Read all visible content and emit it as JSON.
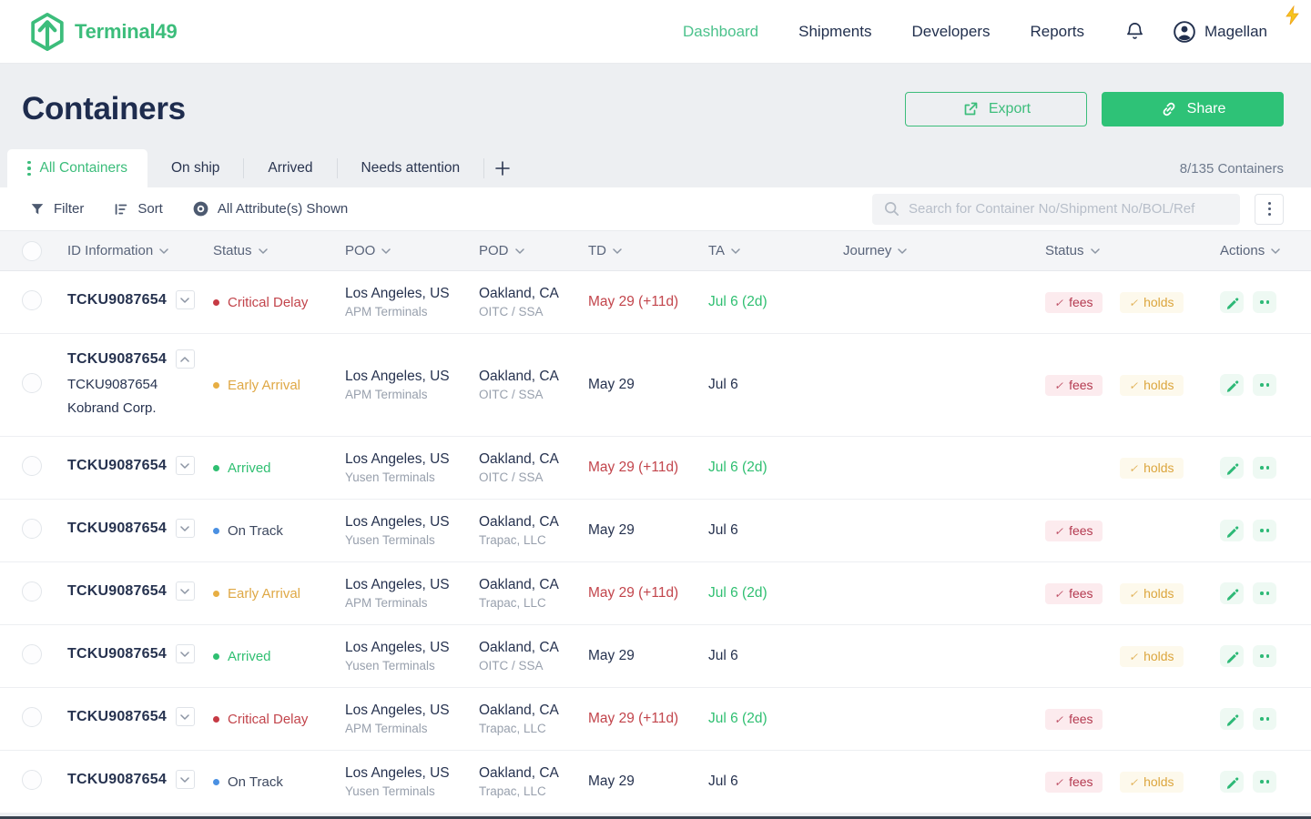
{
  "theme": {
    "brand_green": "#3cbd7b",
    "share_green": "#2ec277",
    "navy": "#22304e",
    "red": "#c2444b",
    "amber": "#e0ab49",
    "status_green": "#2fbf71",
    "blue": "#4a90e2"
  },
  "header": {
    "brand": "Terminal49",
    "nav": [
      {
        "label": "Dashboard",
        "active": true
      },
      {
        "label": "Shipments",
        "active": false
      },
      {
        "label": "Developers",
        "active": false
      },
      {
        "label": "Reports",
        "active": false
      }
    ],
    "user": "Magellan"
  },
  "page": {
    "title": "Containers",
    "export_label": "Export",
    "share_label": "Share",
    "count": "8/135 Containers"
  },
  "tabs": [
    {
      "label": "All Containers",
      "active": true
    },
    {
      "label": "On ship",
      "active": false
    },
    {
      "label": "Arrived",
      "active": false
    },
    {
      "label": "Needs attention",
      "active": false
    }
  ],
  "toolbar": {
    "filter_label": "Filter",
    "sort_label": "Sort",
    "attributes_label": "All Attribute(s) Shown",
    "search_placeholder": "Search for Container No/Shipment No/BOL/Ref"
  },
  "table": {
    "columns": [
      "ID Information",
      "Status",
      "POO",
      "POD",
      "TD",
      "TA",
      "Journey",
      "Status",
      "Actions"
    ],
    "badge_labels": {
      "fees": "fees",
      "holds": "holds"
    },
    "rows": [
      {
        "id": "TCKU9087654",
        "expanded": false,
        "sub_lines": [],
        "status": {
          "label": "Critical Delay",
          "type": "critical"
        },
        "poo": {
          "city": "Los Angeles, US",
          "terminal": "APM Terminals"
        },
        "pod": {
          "city": "Oakland, CA",
          "terminal": "OITC / SSA"
        },
        "td": {
          "text": "May 29 (+11d)",
          "delayed": true
        },
        "ta": {
          "text": "Jul 6 (2d)",
          "early": true
        },
        "badges": {
          "fees": true,
          "holds": true
        }
      },
      {
        "id": "TCKU9087654",
        "expanded": true,
        "sub_lines": [
          "TCKU9087654",
          "Kobrand Corp."
        ],
        "status": {
          "label": "Early Arrival",
          "type": "early"
        },
        "poo": {
          "city": "Los Angeles, US",
          "terminal": "APM Terminals"
        },
        "pod": {
          "city": "Oakland, CA",
          "terminal": "OITC / SSA"
        },
        "td": {
          "text": "May 29",
          "delayed": false
        },
        "ta": {
          "text": "Jul 6",
          "early": false
        },
        "badges": {
          "fees": true,
          "holds": true
        }
      },
      {
        "id": "TCKU9087654",
        "expanded": false,
        "sub_lines": [],
        "status": {
          "label": "Arrived",
          "type": "arrived"
        },
        "poo": {
          "city": "Los Angeles, US",
          "terminal": "Yusen Terminals"
        },
        "pod": {
          "city": "Oakland, CA",
          "terminal": "OITC / SSA"
        },
        "td": {
          "text": "May 29 (+11d)",
          "delayed": true
        },
        "ta": {
          "text": "Jul 6 (2d)",
          "early": true
        },
        "badges": {
          "fees": false,
          "holds": true
        }
      },
      {
        "id": "TCKU9087654",
        "expanded": false,
        "sub_lines": [],
        "status": {
          "label": "On Track",
          "type": "ontrack"
        },
        "poo": {
          "city": "Los Angeles, US",
          "terminal": "Yusen Terminals"
        },
        "pod": {
          "city": "Oakland, CA",
          "terminal": "Trapac, LLC"
        },
        "td": {
          "text": "May 29",
          "delayed": false
        },
        "ta": {
          "text": "Jul 6",
          "early": false
        },
        "badges": {
          "fees": true,
          "holds": false
        }
      },
      {
        "id": "TCKU9087654",
        "expanded": false,
        "sub_lines": [],
        "status": {
          "label": "Early Arrival",
          "type": "early"
        },
        "poo": {
          "city": "Los Angeles, US",
          "terminal": "APM Terminals"
        },
        "pod": {
          "city": "Oakland, CA",
          "terminal": "Trapac, LLC"
        },
        "td": {
          "text": "May 29 (+11d)",
          "delayed": true
        },
        "ta": {
          "text": "Jul 6 (2d)",
          "early": true
        },
        "badges": {
          "fees": true,
          "holds": true
        }
      },
      {
        "id": "TCKU9087654",
        "expanded": false,
        "sub_lines": [],
        "status": {
          "label": "Arrived",
          "type": "arrived"
        },
        "poo": {
          "city": "Los Angeles, US",
          "terminal": "Yusen Terminals"
        },
        "pod": {
          "city": "Oakland, CA",
          "terminal": "OITC / SSA"
        },
        "td": {
          "text": "May 29",
          "delayed": false
        },
        "ta": {
          "text": "Jul 6",
          "early": false
        },
        "badges": {
          "fees": false,
          "holds": true
        }
      },
      {
        "id": "TCKU9087654",
        "expanded": false,
        "sub_lines": [],
        "status": {
          "label": "Critical Delay",
          "type": "critical"
        },
        "poo": {
          "city": "Los Angeles, US",
          "terminal": "APM Terminals"
        },
        "pod": {
          "city": "Oakland, CA",
          "terminal": "Trapac, LLC"
        },
        "td": {
          "text": "May 29 (+11d)",
          "delayed": true
        },
        "ta": {
          "text": "Jul 6 (2d)",
          "early": true
        },
        "badges": {
          "fees": true,
          "holds": false
        }
      },
      {
        "id": "TCKU9087654",
        "expanded": false,
        "sub_lines": [],
        "status": {
          "label": "On Track",
          "type": "ontrack"
        },
        "poo": {
          "city": "Los Angeles, US",
          "terminal": "Yusen Terminals"
        },
        "pod": {
          "city": "Oakland, CA",
          "terminal": "Trapac, LLC"
        },
        "td": {
          "text": "May 29",
          "delayed": false
        },
        "ta": {
          "text": "Jul 6",
          "early": false
        },
        "badges": {
          "fees": true,
          "holds": true
        }
      }
    ]
  }
}
